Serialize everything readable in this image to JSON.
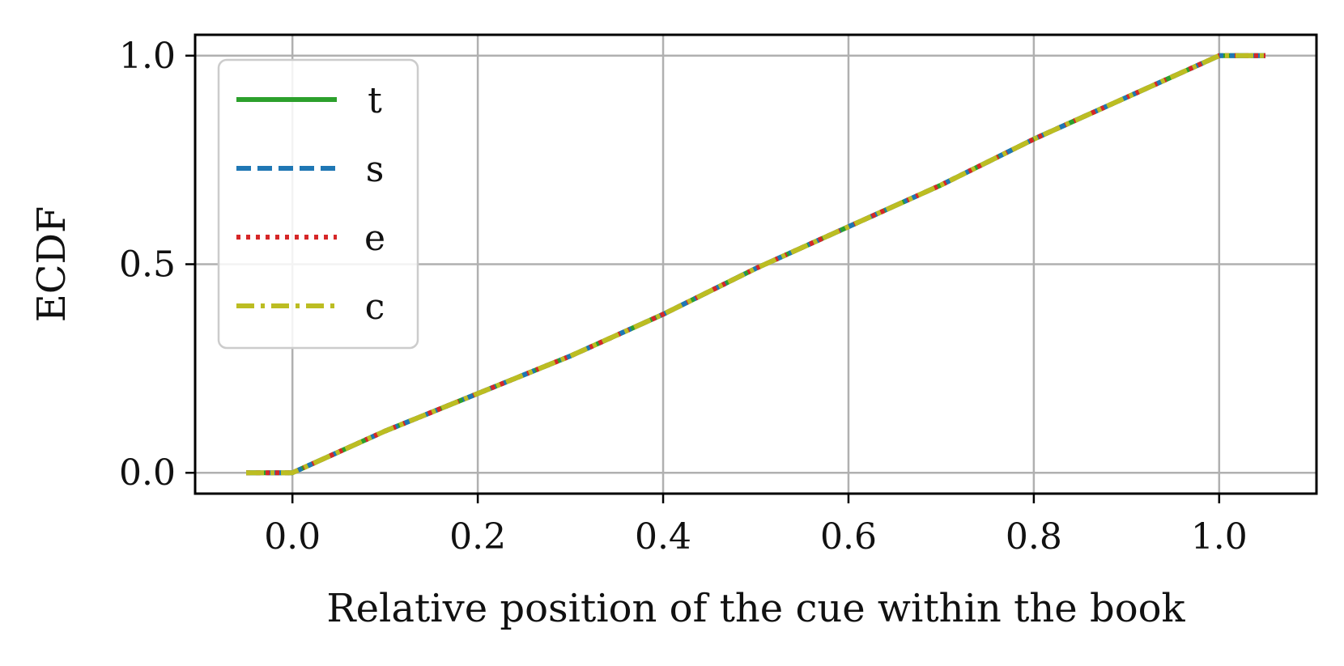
{
  "chart_data": {
    "type": "line",
    "title": "",
    "xlabel": "Relative position of the cue within the book",
    "ylabel": "ECDF",
    "xlim": [
      -0.105,
      1.105
    ],
    "ylim": [
      -0.05,
      1.05
    ],
    "x_ticks": [
      0.0,
      0.2,
      0.4,
      0.6,
      0.8,
      1.0
    ],
    "x_tick_labels": [
      "0.0",
      "0.2",
      "0.4",
      "0.6",
      "0.8",
      "1.0"
    ],
    "y_ticks": [
      0.0,
      0.5,
      1.0
    ],
    "y_tick_labels": [
      "0.0",
      "0.5",
      "1.0"
    ],
    "grid": true,
    "legend_position": "upper-left",
    "series": [
      {
        "name": "t",
        "color": "#2ca02c",
        "linestyle": "solid",
        "x": [
          -0.05,
          0.0,
          0.0,
          0.1,
          0.2,
          0.3,
          0.4,
          0.5,
          0.6,
          0.7,
          0.8,
          0.9,
          1.0,
          1.0,
          1.05
        ],
        "y": [
          0.0,
          0.0,
          0.0,
          0.1,
          0.19,
          0.28,
          0.38,
          0.49,
          0.59,
          0.69,
          0.8,
          0.9,
          1.0,
          1.0,
          1.0
        ]
      },
      {
        "name": "s",
        "color": "#1f77b4",
        "linestyle": "dashed",
        "x": [
          -0.05,
          0.0,
          0.0,
          0.1,
          0.2,
          0.3,
          0.4,
          0.5,
          0.6,
          0.7,
          0.8,
          0.9,
          1.0,
          1.0,
          1.05
        ],
        "y": [
          0.0,
          0.0,
          0.0,
          0.1,
          0.19,
          0.28,
          0.38,
          0.49,
          0.59,
          0.69,
          0.8,
          0.9,
          1.0,
          1.0,
          1.0
        ]
      },
      {
        "name": "e",
        "color": "#d62728",
        "linestyle": "dotted",
        "x": [
          -0.05,
          0.0,
          0.0,
          0.1,
          0.2,
          0.3,
          0.4,
          0.5,
          0.6,
          0.7,
          0.8,
          0.9,
          1.0,
          1.0,
          1.05
        ],
        "y": [
          0.0,
          0.0,
          0.0,
          0.1,
          0.19,
          0.28,
          0.38,
          0.49,
          0.59,
          0.69,
          0.8,
          0.9,
          1.0,
          1.0,
          1.0
        ]
      },
      {
        "name": "c",
        "color": "#bcbd22",
        "linestyle": "dashdot",
        "x": [
          -0.05,
          0.0,
          0.0,
          0.1,
          0.2,
          0.3,
          0.4,
          0.5,
          0.6,
          0.7,
          0.8,
          0.9,
          1.0,
          1.0,
          1.05
        ],
        "y": [
          0.0,
          0.0,
          0.0,
          0.1,
          0.19,
          0.28,
          0.38,
          0.49,
          0.59,
          0.69,
          0.8,
          0.9,
          1.0,
          1.0,
          1.0
        ]
      }
    ]
  }
}
